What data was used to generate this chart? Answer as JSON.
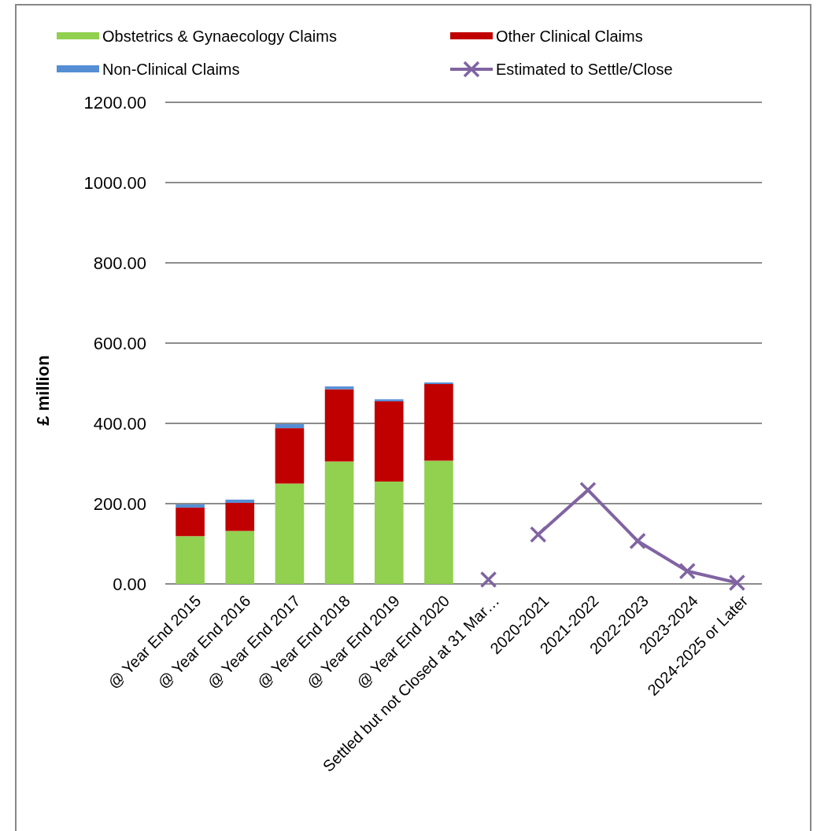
{
  "chart_data": {
    "type": "bar",
    "stacked": true,
    "ylabel": "£ million",
    "categories": [
      "@ Year End 2015",
      "@ Year End 2016",
      "@ Year End 2017",
      "@ Year End 2018",
      "@ Year End 2019",
      "@ Year End 2020",
      "Settled but not Closed at 31 Mar…",
      "2020-2021",
      "2021-2022",
      "2022-2023",
      "2023-2024",
      "2024-2025 or Later"
    ],
    "series": [
      {
        "name": "Obstetrics & Gynaecology Claims",
        "color": "#92d050",
        "values": [
          119,
          132,
          250,
          305,
          255,
          307,
          null,
          null,
          null,
          null,
          null,
          null
        ]
      },
      {
        "name": "Other Clinical Claims",
        "color": "#c00000",
        "values": [
          71,
          70,
          138,
          180,
          200,
          191,
          null,
          null,
          null,
          null,
          null,
          null
        ]
      },
      {
        "name": "Non-Clinical Claims",
        "color": "#558ed5",
        "values": [
          8,
          8,
          10,
          7,
          5,
          4,
          null,
          null,
          null,
          null,
          null,
          null
        ]
      },
      {
        "name": "Estimated to Settle/Close",
        "type": "line",
        "color": "#8064a2",
        "marker": "cross",
        "values": [
          null,
          null,
          null,
          null,
          null,
          null,
          null,
          123,
          234,
          107,
          32,
          3
        ]
      },
      {
        "type": "scatter",
        "color": "#8064a2",
        "marker": "cross",
        "values": [
          null,
          null,
          null,
          null,
          null,
          null,
          11,
          null,
          null,
          null,
          null,
          null
        ]
      }
    ],
    "ylim": [
      0,
      1200
    ],
    "yticks": [
      {
        "value": 0,
        "label": "0.00"
      },
      {
        "value": 200,
        "label": "200.00"
      },
      {
        "value": 400,
        "label": "400.00"
      },
      {
        "value": 600,
        "label": "600.00"
      },
      {
        "value": 800,
        "label": "800.00"
      },
      {
        "value": 1000,
        "label": "1000.00"
      },
      {
        "value": 1200,
        "label": "1200.00"
      }
    ],
    "grid": "y",
    "legend": "top"
  }
}
